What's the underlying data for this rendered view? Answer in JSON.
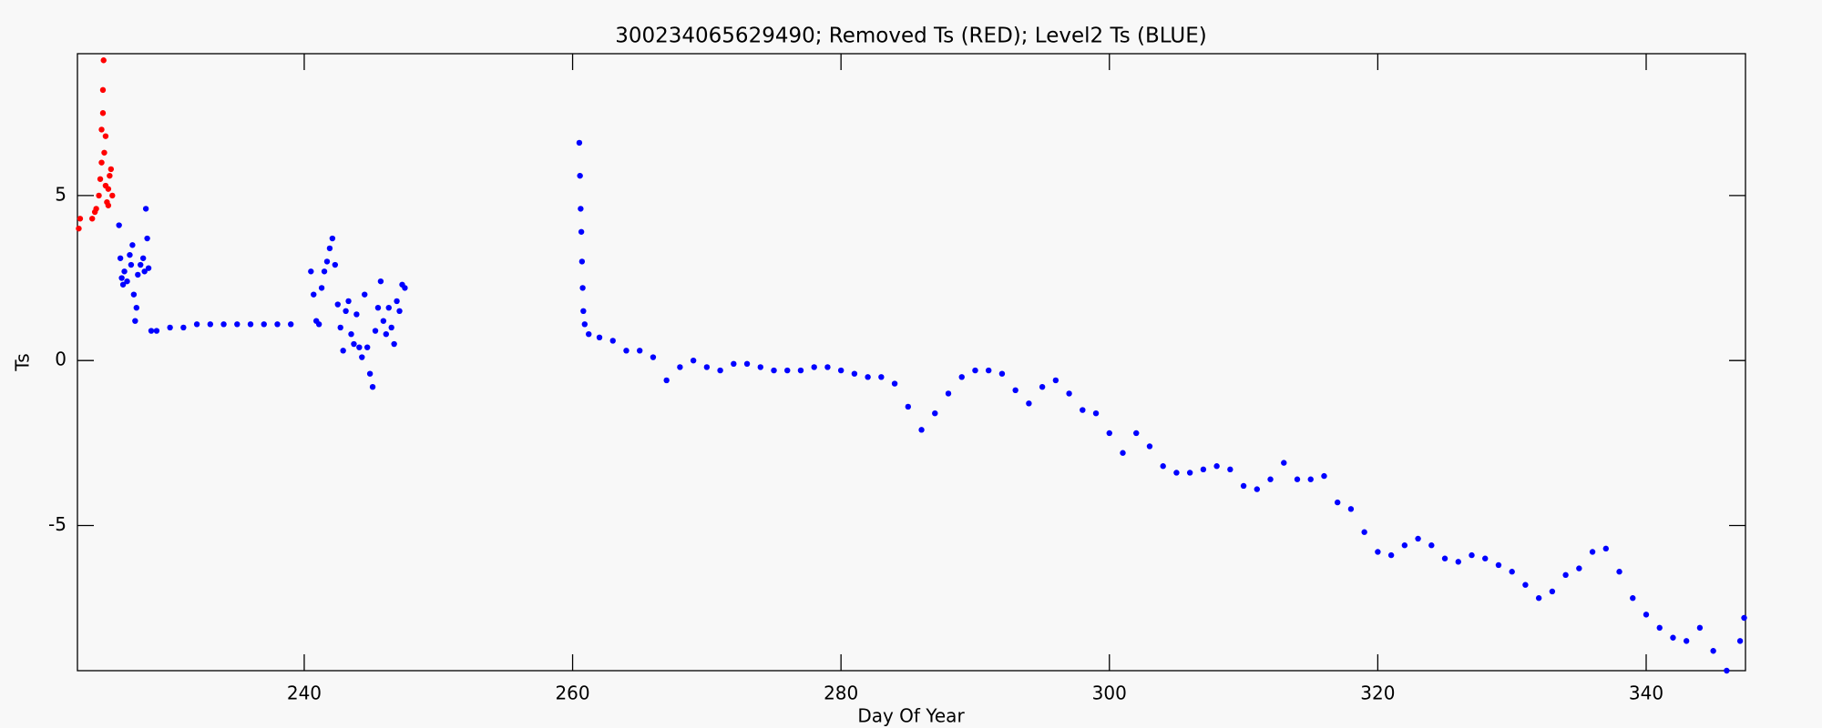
{
  "chart_data": {
    "type": "scatter",
    "title": "300234065629490; Removed Ts (RED); Level2 Ts (BLUE)",
    "xlabel": "Day Of Year",
    "ylabel": "Ts",
    "xlim": [
      223.1,
      347.4
    ],
    "ylim": [
      -9.4,
      9.3
    ],
    "xticks": [
      240,
      260,
      280,
      300,
      320,
      340
    ],
    "yticks": [
      -5,
      0,
      5
    ],
    "series": [
      {
        "name": "Removed Ts",
        "color": "#ff0000",
        "x": [
          223.2,
          223.3,
          224.2,
          224.4,
          224.5,
          224.7,
          224.8,
          224.9,
          225.0,
          225.05,
          225.0,
          225.1,
          225.2,
          225.3,
          225.4,
          225.5,
          225.6,
          225.7,
          225.4,
          225.2,
          224.9
        ],
        "values": [
          4.0,
          4.3,
          4.3,
          4.5,
          4.6,
          5.0,
          5.5,
          6.0,
          8.2,
          9.1,
          7.5,
          6.3,
          5.3,
          4.8,
          5.2,
          5.6,
          5.8,
          5.0,
          4.7,
          6.8,
          7.0
        ]
      },
      {
        "name": "Level2 Ts",
        "color": "#0000ff",
        "x": [
          226.2,
          226.3,
          226.4,
          226.5,
          226.6,
          226.8,
          227.0,
          227.1,
          227.2,
          227.3,
          227.4,
          227.5,
          227.6,
          227.8,
          228.0,
          228.1,
          228.2,
          228.3,
          228.4,
          228.6,
          229,
          230,
          231,
          232,
          233,
          234,
          235,
          236,
          237,
          238,
          239,
          240.5,
          240.7,
          240.9,
          241.1,
          241.3,
          241.5,
          241.7,
          241.9,
          242.1,
          242.3,
          242.5,
          242.7,
          242.9,
          243.1,
          243.3,
          243.5,
          243.7,
          243.9,
          244.1,
          244.3,
          244.5,
          244.7,
          244.9,
          245.1,
          245.3,
          245.5,
          245.7,
          245.9,
          246.1,
          246.3,
          246.5,
          246.7,
          246.9,
          247.1,
          247.3,
          247.5,
          260.5,
          260.55,
          260.6,
          260.65,
          260.7,
          260.75,
          260.8,
          260.9,
          261.2,
          262,
          263,
          264,
          265,
          266,
          267,
          268,
          269,
          270,
          271,
          272,
          273,
          274,
          275,
          276,
          277,
          278,
          279,
          280,
          281,
          282,
          283,
          284,
          285,
          286,
          287,
          288,
          289,
          290,
          291,
          292,
          293,
          294,
          295,
          296,
          297,
          298,
          299,
          300,
          301,
          302,
          303,
          304,
          305,
          306,
          307,
          308,
          309,
          310,
          311,
          312,
          313,
          314,
          315,
          316,
          317,
          318,
          319,
          320,
          321,
          322,
          323,
          324,
          325,
          326,
          327,
          328,
          329,
          330,
          331,
          332,
          333,
          334,
          335,
          336,
          337,
          338,
          339,
          340,
          341,
          342,
          343,
          344,
          345,
          346,
          347,
          347.3
        ],
        "values": [
          4.1,
          3.1,
          2.5,
          2.3,
          2.7,
          2.4,
          3.2,
          2.9,
          3.5,
          2.0,
          1.2,
          1.6,
          2.6,
          2.9,
          3.1,
          2.7,
          4.6,
          3.7,
          2.8,
          0.9,
          0.9,
          1.0,
          1.0,
          1.1,
          1.1,
          1.1,
          1.1,
          1.1,
          1.1,
          1.1,
          1.1,
          2.7,
          2.0,
          1.2,
          1.1,
          2.2,
          2.7,
          3.0,
          3.4,
          3.7,
          2.9,
          1.7,
          1.0,
          0.3,
          1.5,
          1.8,
          0.8,
          0.5,
          1.4,
          0.4,
          0.1,
          2.0,
          0.4,
          -0.4,
          -0.8,
          0.9,
          1.6,
          2.4,
          1.2,
          0.8,
          1.6,
          1.0,
          0.5,
          1.8,
          1.5,
          2.3,
          2.2,
          6.6,
          5.6,
          4.6,
          3.9,
          3.0,
          2.2,
          1.5,
          1.1,
          0.8,
          0.7,
          0.6,
          0.3,
          0.3,
          0.1,
          -0.6,
          -0.2,
          0,
          -0.2,
          -0.3,
          -0.1,
          -0.1,
          -0.2,
          -0.3,
          -0.3,
          -0.3,
          -0.2,
          -0.2,
          -0.3,
          -0.4,
          -0.5,
          -0.5,
          -0.7,
          -1.4,
          -2.1,
          -1.6,
          -1.0,
          -0.5,
          -0.3,
          -0.3,
          -0.4,
          -0.9,
          -1.3,
          -0.8,
          -0.6,
          -1.0,
          -1.5,
          -1.6,
          -2.2,
          -2.8,
          -2.2,
          -2.6,
          -3.2,
          -3.4,
          -3.4,
          -3.3,
          -3.2,
          -3.3,
          -3.8,
          -3.9,
          -3.6,
          -3.1,
          -3.6,
          -3.6,
          -3.5,
          -4.3,
          -4.5,
          -5.2,
          -5.8,
          -5.9,
          -5.6,
          -5.4,
          -5.6,
          -6.0,
          -6.1,
          -5.9,
          -6.0,
          -6.2,
          -6.4,
          -6.8,
          -7.2,
          -7.0,
          -6.5,
          -6.3,
          -5.8,
          -5.7,
          -6.4,
          -7.2,
          -7.7,
          -8.1,
          -8.4,
          -8.5,
          -8.1,
          -8.8,
          -9.4,
          -8.5,
          -7.8
        ]
      }
    ]
  }
}
